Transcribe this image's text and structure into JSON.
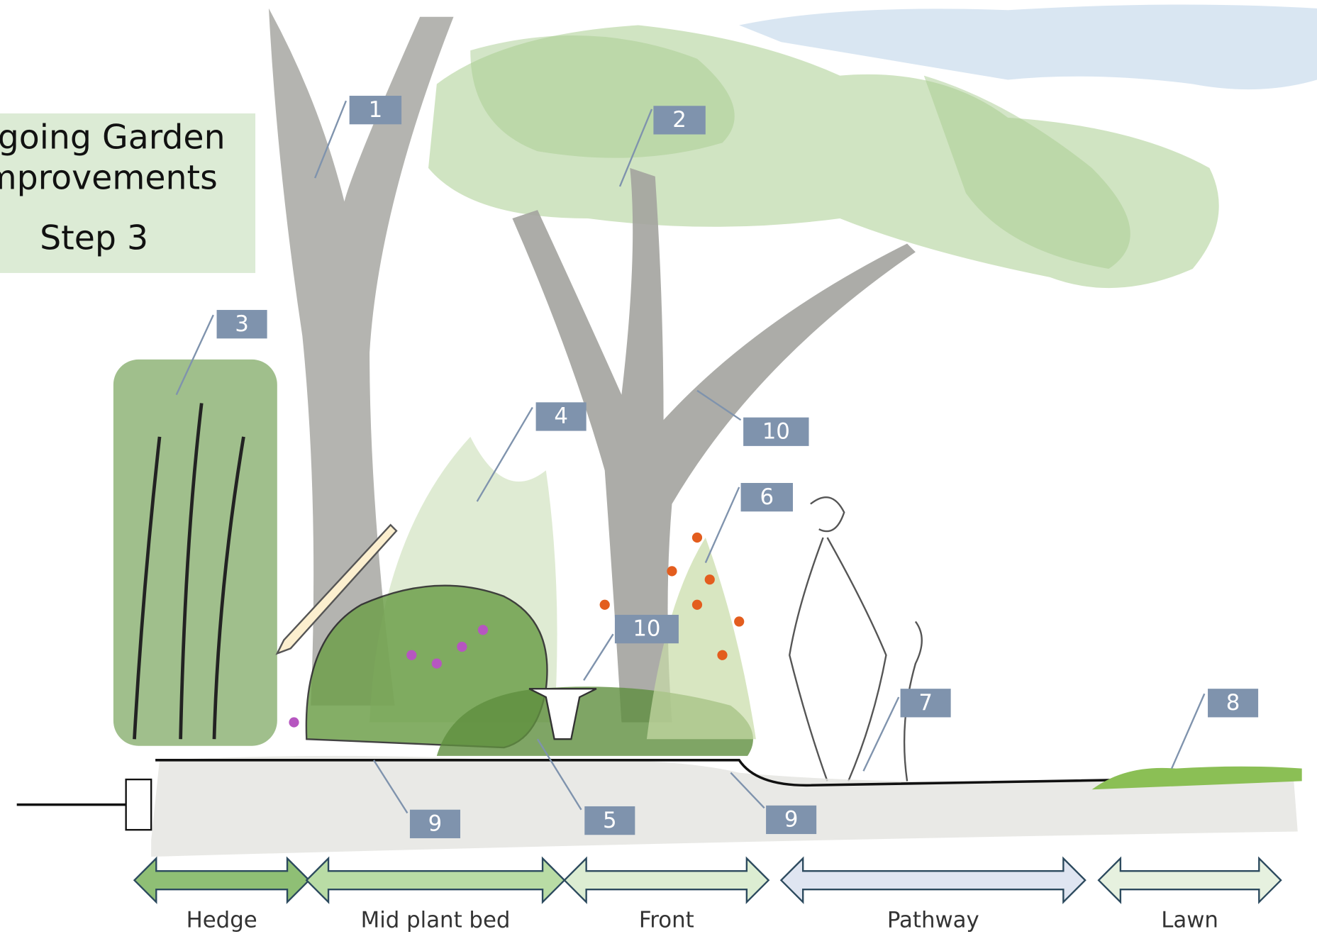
{
  "title": {
    "lines": [
      "ngoing Garden",
      "mprovements"
    ],
    "step": "Step 3"
  },
  "callouts": [
    "1",
    "2",
    "3",
    "4",
    "10",
    "6",
    "10",
    "7",
    "8",
    "9",
    "5",
    "9"
  ],
  "zones": [
    "Hedge",
    "Mid plant bed",
    "Front",
    "Pathway",
    "Lawn"
  ]
}
